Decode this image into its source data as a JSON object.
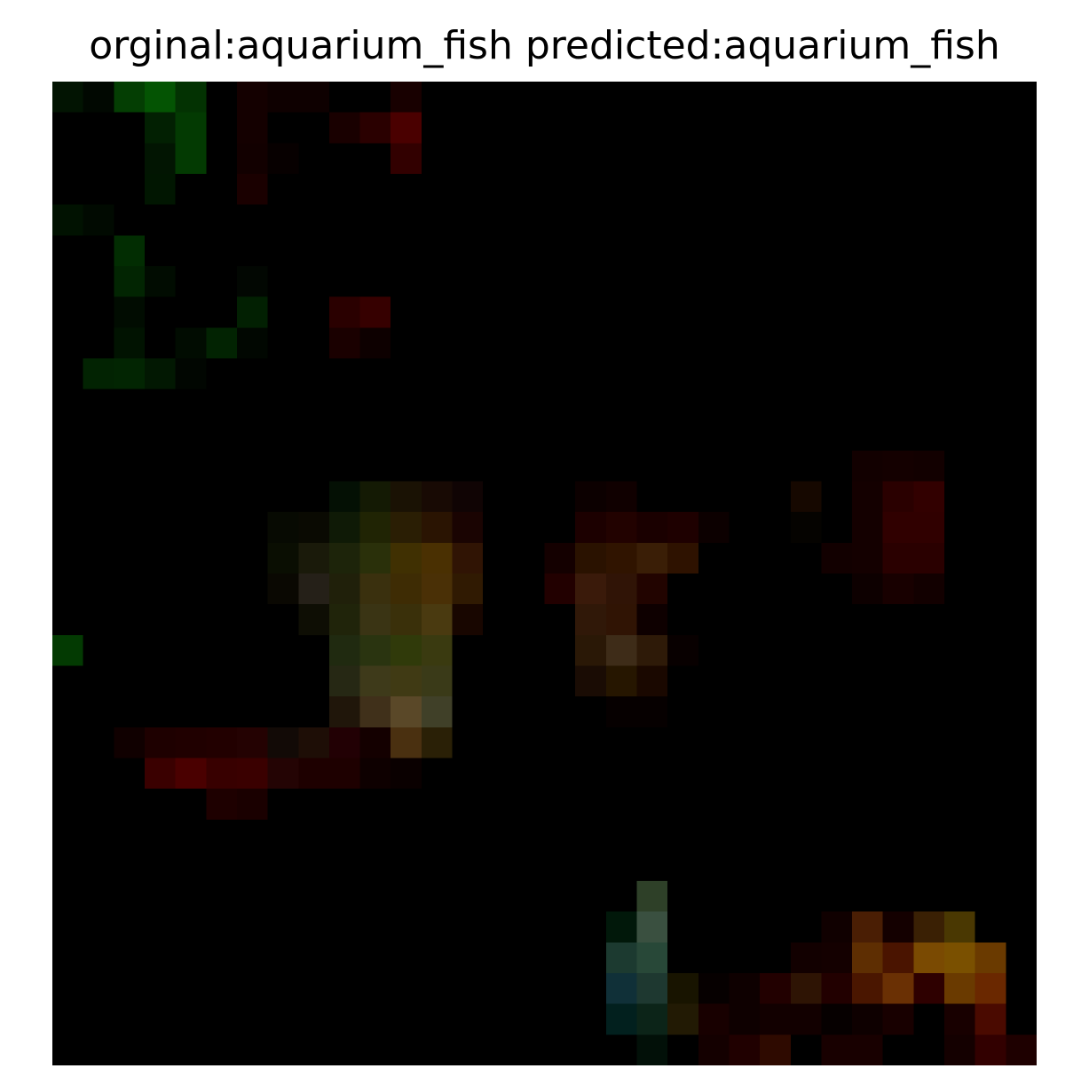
{
  "title": "orginal:aquarium_fish predicted:aquarium_fish",
  "image": {
    "grid_columns": 32,
    "grid_rows": 32,
    "background_color": "#000000",
    "description_colors": {
      "green_regions": "#034f00",
      "red_regions": "#4a0000",
      "amber_regions": "#7a5000"
    }
  }
}
